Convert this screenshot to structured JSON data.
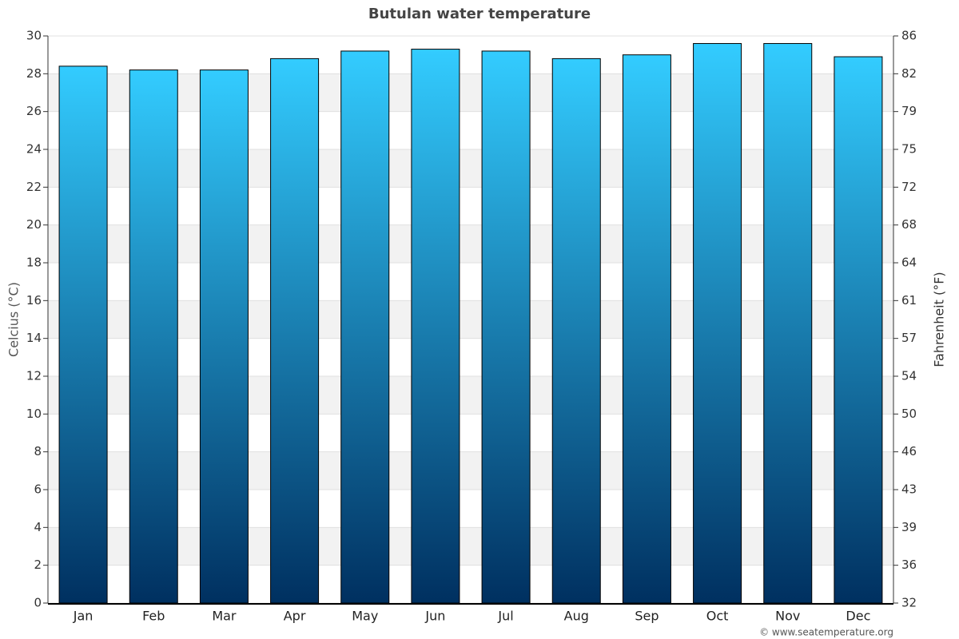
{
  "chart_data": {
    "type": "bar",
    "title": "Butulan water temperature",
    "y_label": "Celcius (°C)",
    "y2_label": "Fahrenheit (°F)",
    "categories": [
      "Jan",
      "Feb",
      "Mar",
      "Apr",
      "May",
      "Jun",
      "Jul",
      "Aug",
      "Sep",
      "Oct",
      "Nov",
      "Dec"
    ],
    "values": [
      28.4,
      28.2,
      28.2,
      28.8,
      29.2,
      29.3,
      29.2,
      28.8,
      29.0,
      29.6,
      29.6,
      28.9
    ],
    "color": [
      "#33ccff",
      "#003060"
    ],
    "ylim": [
      0,
      30
    ],
    "yticks": [
      0,
      2,
      4,
      6,
      8,
      10,
      12,
      14,
      16,
      18,
      20,
      22,
      24,
      26,
      28,
      30
    ],
    "y2lim": [
      32,
      86
    ],
    "y2ticks": [
      32,
      {
        "value": 35.6,
        "label": "36"
      },
      {
        "value": 39.2,
        "label": "39"
      },
      {
        "value": 42.8,
        "label": "43"
      },
      {
        "value": 46.4,
        "label": "46"
      },
      50,
      {
        "value": 53.6,
        "label": "54"
      },
      {
        "value": 57.2,
        "label": "57"
      },
      {
        "value": 60.8,
        "label": "61"
      },
      {
        "value": 64.4,
        "label": "64"
      },
      68,
      {
        "value": 71.6,
        "label": "72"
      },
      {
        "value": 75.2,
        "label": "75"
      },
      {
        "value": 78.8,
        "label": "79"
      },
      {
        "value": 82.4,
        "label": "82"
      },
      86
    ],
    "grid": true,
    "source": "© www.seatemperature.org"
  }
}
